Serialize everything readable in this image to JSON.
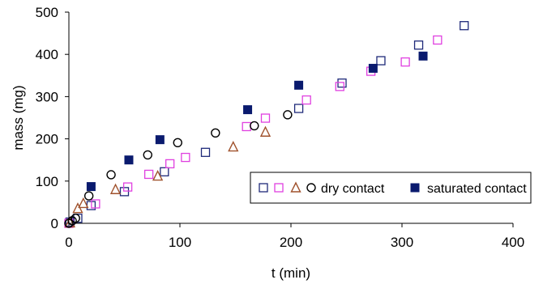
{
  "chart_data": {
    "type": "scatter",
    "title": "",
    "xlabel": "t (min)",
    "ylabel": "mass (mg)",
    "xlim": [
      0,
      400
    ],
    "ylim": [
      0,
      500
    ],
    "xticks": [
      0,
      100,
      200,
      300,
      400
    ],
    "yticks": [
      0,
      100,
      200,
      300,
      400,
      500
    ],
    "grid": false,
    "legend": {
      "placement": "bottom-right",
      "dry_label": "dry contact",
      "saturated_label": "saturated contact"
    },
    "series": [
      {
        "key": "dry-square-navy",
        "group": "dry",
        "marker": "open-square",
        "color": "#1f2a7a",
        "points": [
          [
            1,
            3
          ],
          [
            8,
            12
          ],
          [
            20,
            42
          ],
          [
            50,
            75
          ],
          [
            86,
            122
          ],
          [
            123,
            168
          ],
          [
            207,
            272
          ],
          [
            246,
            332
          ],
          [
            281,
            385
          ],
          [
            315,
            422
          ],
          [
            356,
            468
          ]
        ]
      },
      {
        "key": "dry-square-magenta",
        "group": "dry",
        "marker": "open-square",
        "color": "#e040e0",
        "points": [
          [
            0,
            0
          ],
          [
            24,
            46
          ],
          [
            53,
            86
          ],
          [
            72,
            116
          ],
          [
            91,
            141
          ],
          [
            105,
            156
          ],
          [
            160,
            229
          ],
          [
            177,
            249
          ],
          [
            214,
            292
          ],
          [
            244,
            324
          ],
          [
            272,
            360
          ],
          [
            303,
            382
          ],
          [
            332,
            434
          ]
        ]
      },
      {
        "key": "dry-triangle",
        "group": "dry",
        "marker": "open-triangle",
        "color": "#a0522d",
        "points": [
          [
            1,
            1
          ],
          [
            8,
            35
          ],
          [
            13,
            47
          ],
          [
            42,
            80
          ],
          [
            80,
            112
          ],
          [
            148,
            181
          ],
          [
            177,
            216
          ]
        ]
      },
      {
        "key": "dry-circle",
        "group": "dry",
        "marker": "open-circle",
        "color": "#000000",
        "points": [
          [
            0,
            0
          ],
          [
            3,
            6
          ],
          [
            6,
            12
          ],
          [
            18,
            65
          ],
          [
            38,
            115
          ],
          [
            71,
            162
          ],
          [
            98,
            191
          ],
          [
            132,
            214
          ],
          [
            167,
            231
          ],
          [
            197,
            257
          ]
        ]
      },
      {
        "key": "saturated",
        "group": "saturated",
        "marker": "filled-square",
        "color": "#0a1a6e",
        "points": [
          [
            20,
            87
          ],
          [
            54,
            150
          ],
          [
            82,
            198
          ],
          [
            161,
            269
          ],
          [
            207,
            327
          ],
          [
            274,
            367
          ],
          [
            319,
            396
          ]
        ]
      }
    ]
  }
}
